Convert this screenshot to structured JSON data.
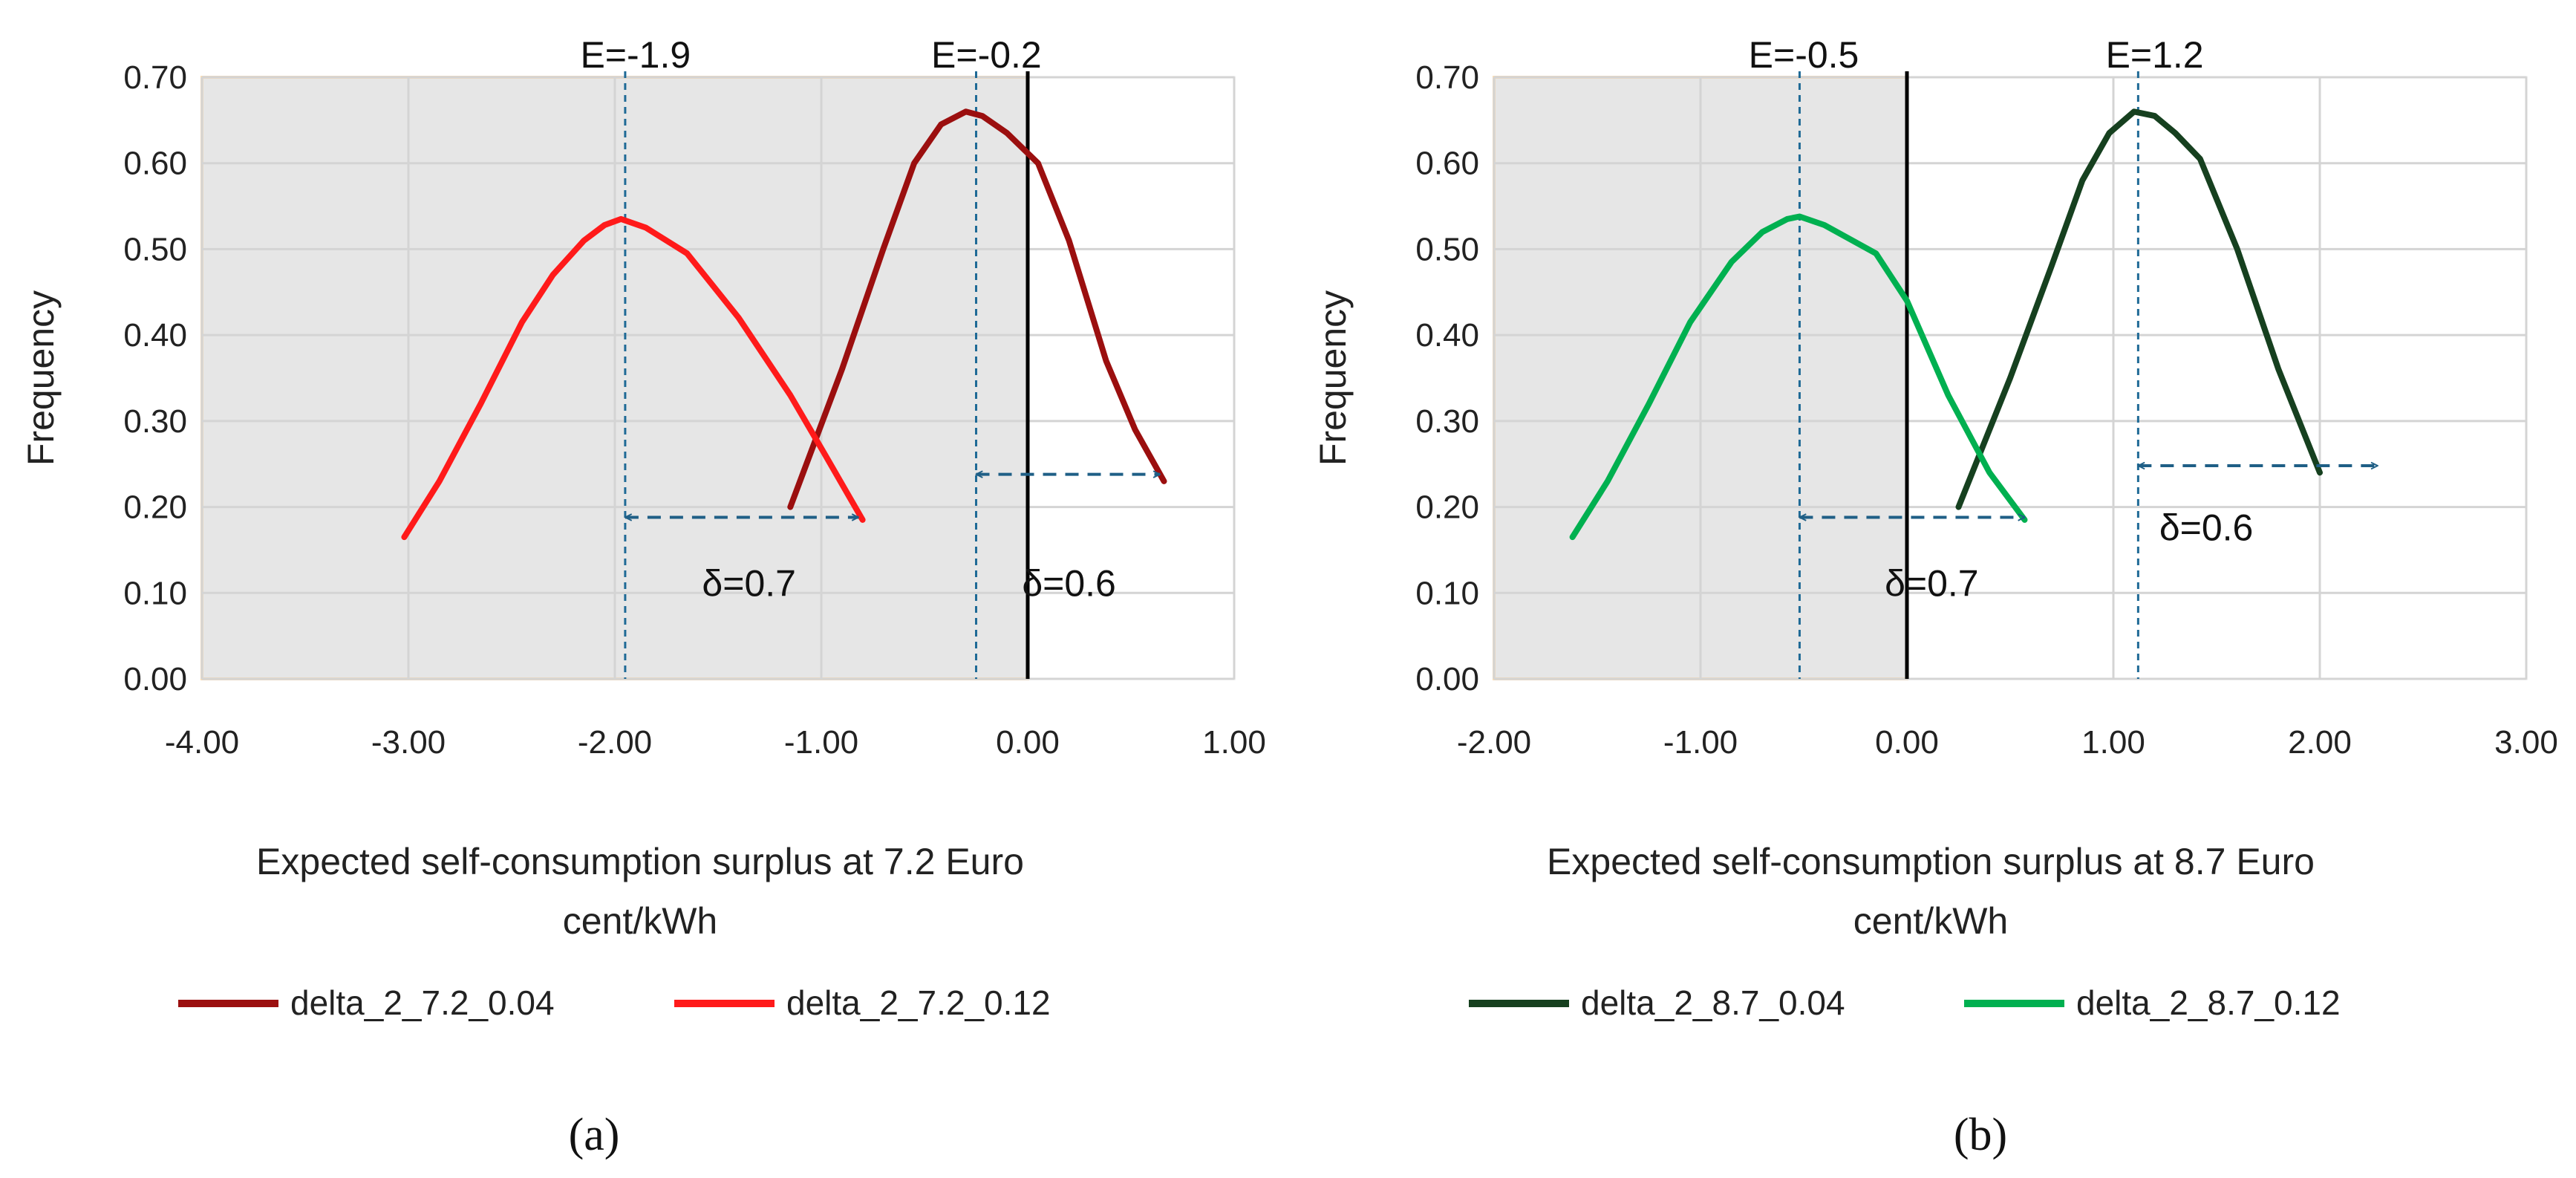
{
  "chart_data": [
    {
      "type": "line",
      "panel_label": "(a)",
      "xlabel_lines": [
        "Expected self-consumption surplus at 7.2 Euro",
        "cent/kWh"
      ],
      "ylabel": "Frequency",
      "xlim": [
        -4.0,
        1.0
      ],
      "ylim": [
        0.0,
        0.7
      ],
      "xticks": [
        -4.0,
        -3.0,
        -2.0,
        -1.0,
        0.0,
        1.0
      ],
      "xtick_labels": [
        "-4.00",
        "-3.00",
        "-2.00",
        "-1.00",
        "0.00",
        "1.00"
      ],
      "yticks": [
        0.0,
        0.1,
        0.2,
        0.3,
        0.4,
        0.5,
        0.6,
        0.7
      ],
      "ytick_labels": [
        "0.00",
        "0.10",
        "0.20",
        "0.30",
        "0.40",
        "0.50",
        "0.60",
        "0.70"
      ],
      "shaded_region": [
        -4.0,
        0.0
      ],
      "zero_line": 0.0,
      "series": [
        {
          "name": "delta_2_7.2_0.04",
          "color": "#9b0f0f",
          "x": [
            -1.15,
            -0.9,
            -0.7,
            -0.55,
            -0.42,
            -0.3,
            -0.22,
            -0.1,
            0.05,
            0.2,
            0.38,
            0.52,
            0.66
          ],
          "y": [
            0.2,
            0.36,
            0.5,
            0.6,
            0.645,
            0.66,
            0.655,
            0.635,
            0.6,
            0.51,
            0.37,
            0.29,
            0.23
          ]
        },
        {
          "name": "delta_2_7.2_0.12",
          "color": "#ff1a1a",
          "x": [
            -3.02,
            -2.85,
            -2.65,
            -2.45,
            -2.3,
            -2.15,
            -2.05,
            -1.97,
            -1.85,
            -1.65,
            -1.4,
            -1.15,
            -0.98,
            -0.8
          ],
          "y": [
            0.165,
            0.23,
            0.32,
            0.415,
            0.47,
            0.51,
            0.528,
            0.535,
            0.525,
            0.495,
            0.42,
            0.33,
            0.26,
            0.185
          ]
        }
      ],
      "annotations": [
        {
          "text": "E=-1.9",
          "x": -1.9,
          "y": 0.725
        },
        {
          "text": "E=-0.2",
          "x": -0.2,
          "y": 0.725
        },
        {
          "text": "δ=0.7",
          "x": -1.35,
          "y": 0.11
        },
        {
          "text": "δ=0.6",
          "x": 0.2,
          "y": 0.11
        }
      ],
      "mean_lines": [
        -1.95,
        -0.25
      ],
      "arrows": [
        {
          "x1": -1.95,
          "x2": -0.82,
          "y": 0.188
        },
        {
          "x1": -0.25,
          "x2": 0.64,
          "y": 0.238
        }
      ]
    },
    {
      "type": "line",
      "panel_label": "(b)",
      "xlabel_lines": [
        "Expected self-consumption surplus at 8.7 Euro",
        "cent/kWh"
      ],
      "ylabel": "Frequency",
      "xlim": [
        -2.0,
        3.0
      ],
      "ylim": [
        0.0,
        0.7
      ],
      "xticks": [
        -2.0,
        -1.0,
        0.0,
        1.0,
        2.0,
        3.0
      ],
      "xtick_labels": [
        "-2.00",
        "-1.00",
        "0.00",
        "1.00",
        "2.00",
        "3.00"
      ],
      "yticks": [
        0.0,
        0.1,
        0.2,
        0.3,
        0.4,
        0.5,
        0.6,
        0.7
      ],
      "ytick_labels": [
        "0.00",
        "0.10",
        "0.20",
        "0.30",
        "0.40",
        "0.50",
        "0.60",
        "0.70"
      ],
      "shaded_region": [
        -2.0,
        0.0
      ],
      "zero_line": 0.0,
      "series": [
        {
          "name": "delta_2_8.7_0.04",
          "color": "#16401f",
          "x": [
            0.25,
            0.5,
            0.7,
            0.85,
            0.98,
            1.1,
            1.2,
            1.3,
            1.42,
            1.6,
            1.8,
            2.0
          ],
          "y": [
            0.2,
            0.35,
            0.48,
            0.58,
            0.635,
            0.66,
            0.655,
            0.635,
            0.605,
            0.5,
            0.36,
            0.24
          ]
        },
        {
          "name": "delta_2_8.7_0.12",
          "color": "#00b050",
          "x": [
            -1.62,
            -1.45,
            -1.25,
            -1.05,
            -0.85,
            -0.7,
            -0.58,
            -0.52,
            -0.4,
            -0.15,
            0.0,
            0.2,
            0.4,
            0.57
          ],
          "y": [
            0.165,
            0.23,
            0.32,
            0.415,
            0.485,
            0.52,
            0.535,
            0.538,
            0.528,
            0.495,
            0.44,
            0.33,
            0.24,
            0.185
          ]
        }
      ],
      "annotations": [
        {
          "text": "E=-0.5",
          "x": -0.5,
          "y": 0.725
        },
        {
          "text": "E=1.2",
          "x": 1.2,
          "y": 0.725
        },
        {
          "text": "δ=0.7",
          "x": 0.12,
          "y": 0.11
        },
        {
          "text": "δ=0.6",
          "x": 1.45,
          "y": 0.175
        }
      ],
      "mean_lines": [
        -0.52,
        1.12
      ],
      "arrows": [
        {
          "x1": -0.52,
          "x2": 0.57,
          "y": 0.188
        },
        {
          "x1": 1.12,
          "x2": 2.28,
          "y": 0.248
        }
      ]
    }
  ]
}
